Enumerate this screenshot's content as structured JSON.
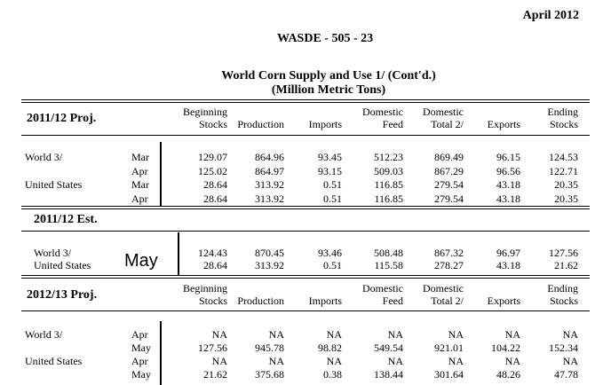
{
  "header": {
    "date": "April 2012",
    "report_id": "WASDE - 505 - 23",
    "title_line1": "World Corn Supply and Use  1/  (Cont'd.)",
    "title_line2": "(Million Metric Tons)"
  },
  "columns": [
    {
      "line1": "Beginning",
      "line2": "Stocks"
    },
    {
      "line1": "",
      "line2": "Production"
    },
    {
      "line1": "",
      "line2": "Imports"
    },
    {
      "line1": "Domestic",
      "line2": "Feed"
    },
    {
      "line1": "Domestic",
      "line2": "Total 2/"
    },
    {
      "line1": "",
      "line2": "Exports"
    },
    {
      "line1": "Ending",
      "line2": "Stocks"
    }
  ],
  "section1": {
    "title": "2011/12 Proj.",
    "rows": [
      {
        "region": "World  3/",
        "month": "Mar",
        "values": [
          "129.07",
          "864.96",
          "93.45",
          "512.23",
          "869.49",
          "96.15",
          "124.53"
        ]
      },
      {
        "region": "",
        "month": "Apr",
        "values": [
          "125.02",
          "864.97",
          "93.15",
          "509.03",
          "867.29",
          "96.56",
          "122.71"
        ]
      },
      {
        "region": "United States",
        "month": "Mar",
        "values": [
          "28.64",
          "313.92",
          "0.51",
          "116.85",
          "279.54",
          "43.18",
          "20.35"
        ]
      },
      {
        "region": "",
        "month": "Apr",
        "values": [
          "28.64",
          "313.92",
          "0.51",
          "116.85",
          "279.54",
          "43.18",
          "20.35"
        ]
      }
    ]
  },
  "section2": {
    "title": "2011/12 Est.",
    "month_label": "May",
    "rows": [
      {
        "region": "World  3/",
        "values": [
          "124.43",
          "870.45",
          "93.46",
          "508.48",
          "867.32",
          "96.97",
          "127.56"
        ]
      },
      {
        "region": "United States",
        "values": [
          "28.64",
          "313.92",
          "0.51",
          "115.58",
          "278.27",
          "43.18",
          "21.62"
        ]
      }
    ]
  },
  "section3": {
    "title": "2012/13 Proj.",
    "rows": [
      {
        "region": "World  3/",
        "month": "Apr",
        "values": [
          "NA",
          "NA",
          "NA",
          "NA",
          "NA",
          "NA",
          "NA"
        ]
      },
      {
        "region": "",
        "month": "May",
        "values": [
          "127.56",
          "945.78",
          "98.82",
          "549.54",
          "921.01",
          "104.22",
          "152.34"
        ]
      },
      {
        "region": "United States",
        "month": "Apr",
        "values": [
          "NA",
          "NA",
          "NA",
          "NA",
          "NA",
          "NA",
          "NA"
        ]
      },
      {
        "region": "",
        "month": "May",
        "values": [
          "21.62",
          "375.68",
          "0.38",
          "138.44",
          "301.64",
          "48.26",
          "47.78"
        ]
      }
    ]
  }
}
